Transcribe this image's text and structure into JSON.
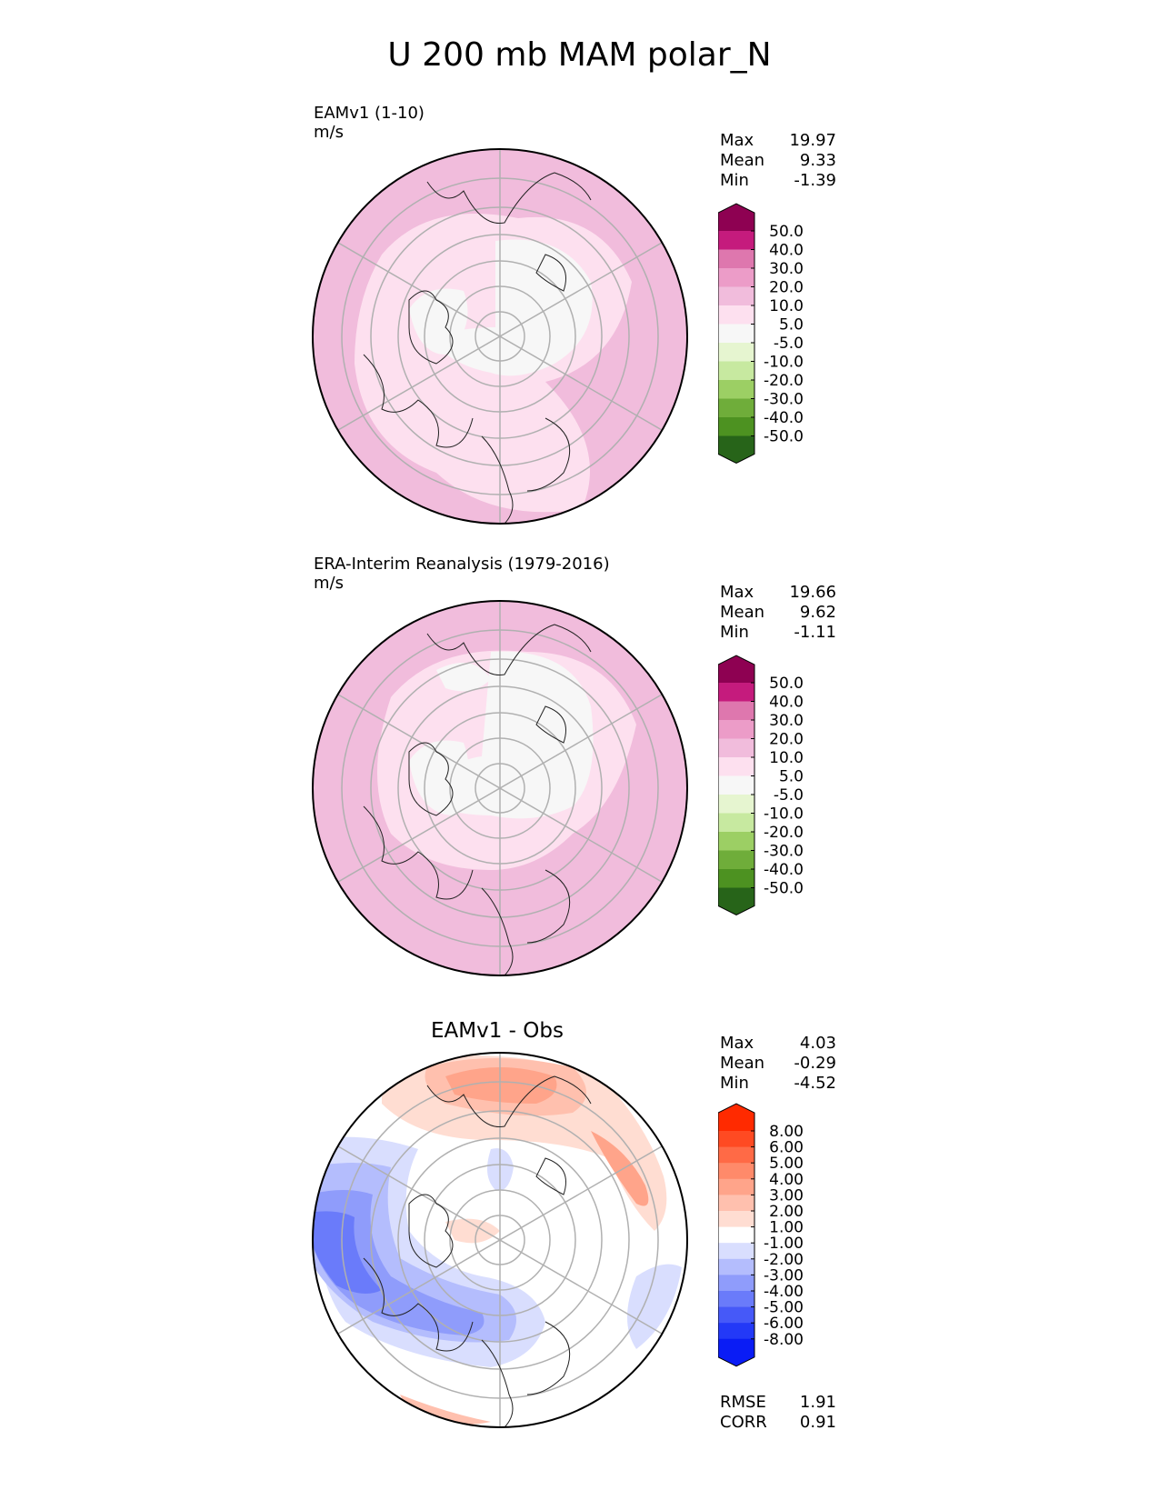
{
  "title": "U 200 mb MAM polar_N",
  "panels": [
    {
      "title_line1": "EAMv1 (1-10)",
      "title_line2": "m/s",
      "stats": [
        {
          "label": "Max",
          "value": "19.97"
        },
        {
          "label": "Mean",
          "value": "9.33"
        },
        {
          "label": "Min",
          "value": "-1.39"
        }
      ]
    },
    {
      "title_line1": "ERA-Interim Reanalysis (1979-2016)",
      "title_line2": "m/s",
      "stats": [
        {
          "label": "Max",
          "value": "19.66"
        },
        {
          "label": "Mean",
          "value": "9.62"
        },
        {
          "label": "Min",
          "value": "-1.11"
        }
      ]
    },
    {
      "title": "EAMv1 - Obs",
      "stats": [
        {
          "label": "Max",
          "value": "4.03"
        },
        {
          "label": "Mean",
          "value": "-0.29"
        },
        {
          "label": "Min",
          "value": "-4.52"
        }
      ],
      "metrics": [
        {
          "label": "RMSE",
          "value": "1.91"
        },
        {
          "label": "CORR",
          "value": "0.91"
        }
      ]
    }
  ],
  "chart_data": [
    {
      "type": "heatmap",
      "projection": "north polar stereographic",
      "title": "EAMv1 (1-10)",
      "units": "m/s",
      "colorbar": {
        "ticks": [
          "50.0",
          "40.0",
          "30.0",
          "20.0",
          "10.0",
          "5.0",
          "-5.0",
          "-10.0",
          "-20.0",
          "-30.0",
          "-40.0",
          "-50.0"
        ],
        "colors": [
          "#8e0152",
          "#c51b7d",
          "#de77ae",
          "#ec9cc8",
          "#f1bcdc",
          "#fde0ef",
          "#f7f7f7",
          "#e6f5d0",
          "#c7e9a0",
          "#9ccf64",
          "#6fad3a",
          "#4d9221",
          "#276419"
        ]
      },
      "max": 19.97,
      "mean": 9.33,
      "min": -1.39
    },
    {
      "type": "heatmap",
      "projection": "north polar stereographic",
      "title": "ERA-Interim Reanalysis (1979-2016)",
      "units": "m/s",
      "colorbar": {
        "ticks": [
          "50.0",
          "40.0",
          "30.0",
          "20.0",
          "10.0",
          "5.0",
          "-5.0",
          "-10.0",
          "-20.0",
          "-30.0",
          "-40.0",
          "-50.0"
        ],
        "colors": [
          "#8e0152",
          "#c51b7d",
          "#de77ae",
          "#ec9cc8",
          "#f1bcdc",
          "#fde0ef",
          "#f7f7f7",
          "#e6f5d0",
          "#c7e9a0",
          "#9ccf64",
          "#6fad3a",
          "#4d9221",
          "#276419"
        ]
      },
      "max": 19.66,
      "mean": 9.62,
      "min": -1.11
    },
    {
      "type": "heatmap",
      "projection": "north polar stereographic",
      "title": "EAMv1 - Obs",
      "colorbar": {
        "ticks": [
          "8.00",
          "6.00",
          "5.00",
          "4.00",
          "3.00",
          "2.00",
          "1.00",
          "-1.00",
          "-2.00",
          "-3.00",
          "-4.00",
          "-5.00",
          "-6.00",
          "-8.00"
        ],
        "colors": [
          "#ff2a00",
          "#ff4a22",
          "#ff6a46",
          "#ff8a6a",
          "#ffa48a",
          "#ffc0ae",
          "#ffddd2",
          "#ffffff",
          "#d9defe",
          "#b4bdfd",
          "#8f9cfb",
          "#6a7bfa",
          "#4659f8",
          "#2339f7",
          "#0a1cf5"
        ]
      },
      "max": 4.03,
      "mean": -0.29,
      "min": -4.52,
      "rmse": 1.91,
      "corr": 0.91
    }
  ]
}
